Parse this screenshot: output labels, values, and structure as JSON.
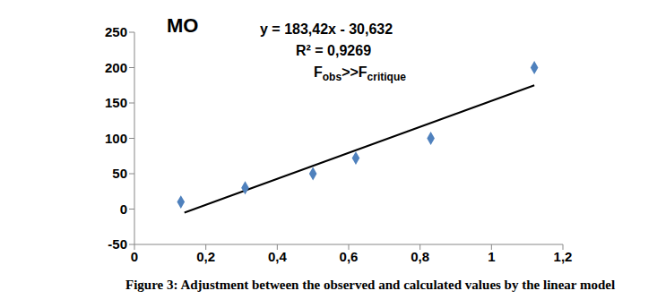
{
  "chart_data": {
    "type": "scatter",
    "title": "MO",
    "caption": "Figure 3: Adjustment between the observed and calculated values by the linear model",
    "annotations": [
      {
        "segments": [
          {
            "text": "y = 183,42x - 30,632"
          }
        ]
      },
      {
        "segments": [
          {
            "text": "R² = 0,9269"
          }
        ]
      },
      {
        "segments": [
          {
            "text": "F"
          },
          {
            "text": "obs",
            "sub": true
          },
          {
            "text": ">>F"
          },
          {
            "text": "critique",
            "sub": true
          }
        ]
      }
    ],
    "series": [
      {
        "type": "scatter",
        "color": "#4f81bd",
        "marker": "diamond",
        "x": [
          0.13,
          0.31,
          0.5,
          0.62,
          0.83,
          1.12
        ],
        "values": [
          10,
          30,
          50,
          72,
          100,
          200
        ]
      },
      {
        "type": "line",
        "color": "#000000",
        "x": [
          0.14,
          1.12
        ],
        "values": [
          -5,
          175
        ]
      }
    ],
    "xlim": [
      0,
      1.2
    ],
    "xticks": [
      0,
      {
        "value": 0.2,
        "label": "0,2"
      },
      {
        "value": 0.4,
        "label": "0,4"
      },
      {
        "value": 0.6,
        "label": "0,6"
      },
      {
        "value": 0.8,
        "label": "0,8"
      },
      1,
      {
        "value": 1.2,
        "label": "1,2"
      }
    ],
    "ylim": [
      -50,
      250
    ],
    "yticks": [
      -50,
      0,
      50,
      100,
      150,
      200,
      250
    ],
    "grid": false
  }
}
